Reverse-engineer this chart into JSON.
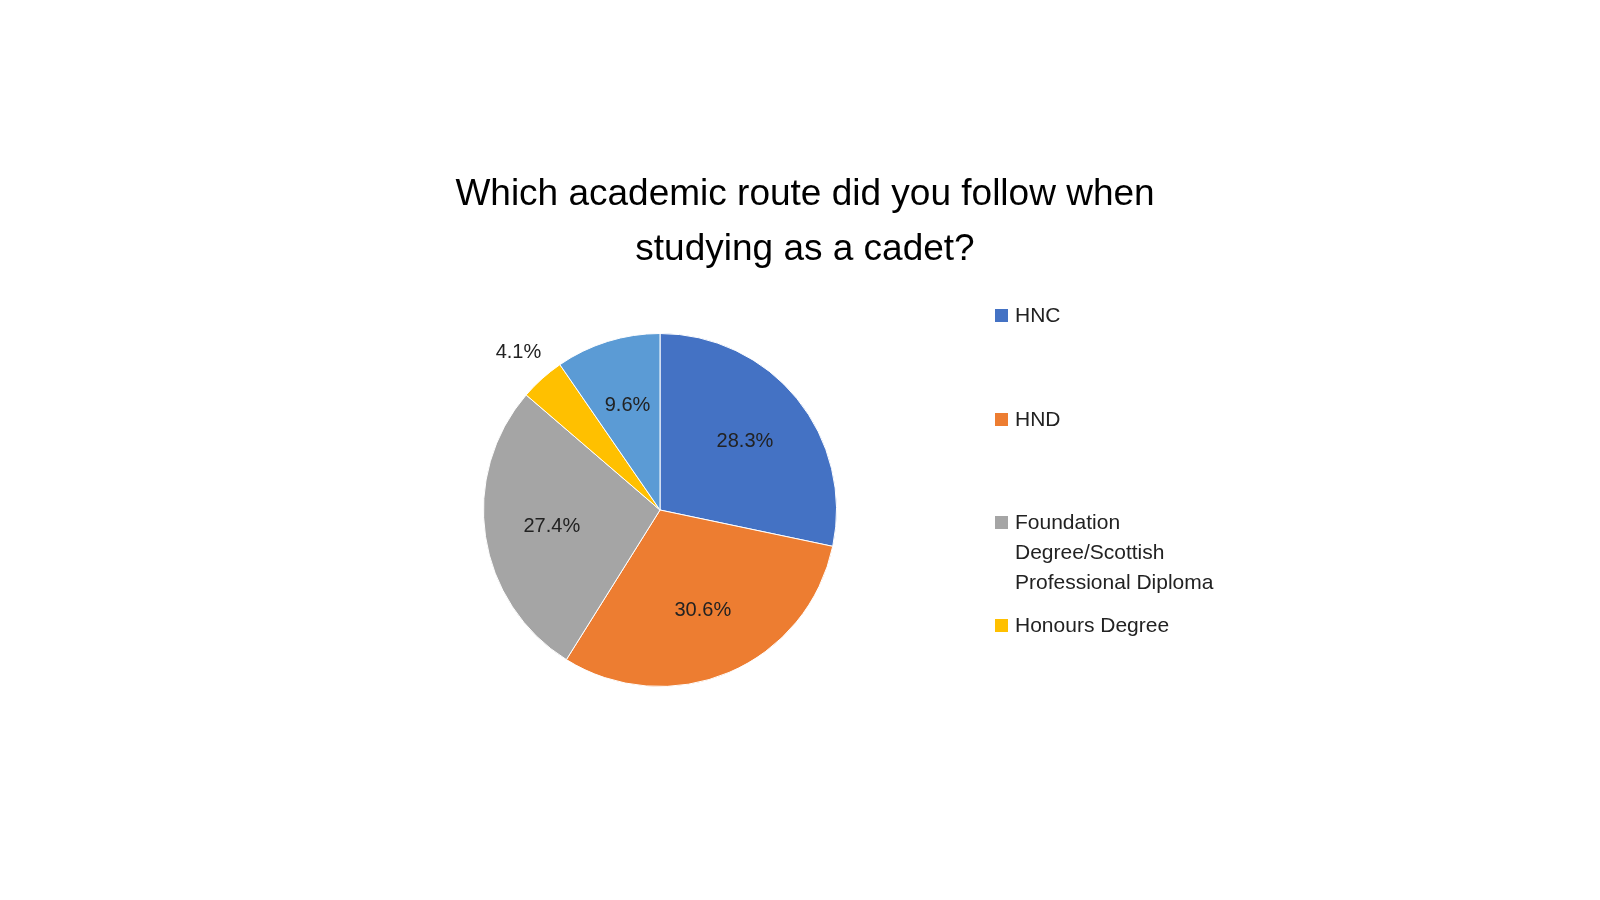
{
  "chart_data": {
    "type": "pie",
    "title": "Which academic route did you follow when studying as a cadet?",
    "categories": [
      "HNC",
      "HND",
      "Foundation Degree/Scottish Professional Diploma",
      "Honours Degree",
      null
    ],
    "values": [
      28.3,
      30.6,
      27.4,
      4.1,
      9.6
    ],
    "colors": [
      "#4472c4",
      "#ed7d31",
      "#a5a5a5",
      "#ffc000",
      "#5b9bd5"
    ],
    "value_labels": [
      "28.3%",
      "30.6%",
      "27.4%",
      "4.1%",
      "9.6%"
    ],
    "legend": "right"
  }
}
